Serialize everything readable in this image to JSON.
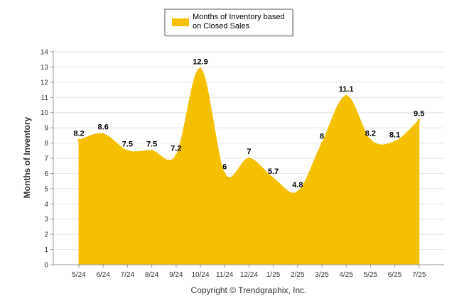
{
  "chart_data": {
    "type": "area",
    "categories": [
      "5/24",
      "6/24",
      "7/24",
      "8/24",
      "9/24",
      "10/24",
      "11/24",
      "12/24",
      "1/25",
      "2/25",
      "3/25",
      "4/25",
      "5/25",
      "6/25",
      "7/25"
    ],
    "series": [
      {
        "name": "Months of Inventory based on Closed Sales",
        "values": [
          8.2,
          8.6,
          7.5,
          7.5,
          7.2,
          12.9,
          6,
          7,
          5.7,
          4.8,
          8,
          11.1,
          8.2,
          8.1,
          9.5
        ],
        "value_labels": [
          "8.2",
          "8.6",
          "7.5",
          "7.5",
          "7.2",
          "12.9",
          "6",
          "7",
          "5.7",
          "4.8",
          "8",
          "11.1",
          "8.2",
          "8.1",
          "9.5"
        ],
        "color": "#F5C000"
      }
    ],
    "ylabel": "Months of Inventory",
    "ylim": [
      0,
      14
    ],
    "yticks": [
      0,
      1,
      2,
      3,
      4,
      5,
      6,
      7,
      8,
      9,
      10,
      11,
      12,
      13,
      14
    ],
    "ytick_labels": [
      "0",
      "1",
      "2",
      "3",
      "4",
      "5",
      "6",
      "7",
      "8",
      "9",
      "10",
      "11",
      "12",
      "13",
      "14"
    ],
    "grid": true,
    "legend_position": "top-center",
    "legend_lines": [
      "Months of Inventory based",
      "on Closed Sales"
    ]
  },
  "credit": "Copyright © Trendgraphix, Inc.",
  "colors": {
    "grid": "#e6e6e6",
    "axis": "#999999"
  }
}
